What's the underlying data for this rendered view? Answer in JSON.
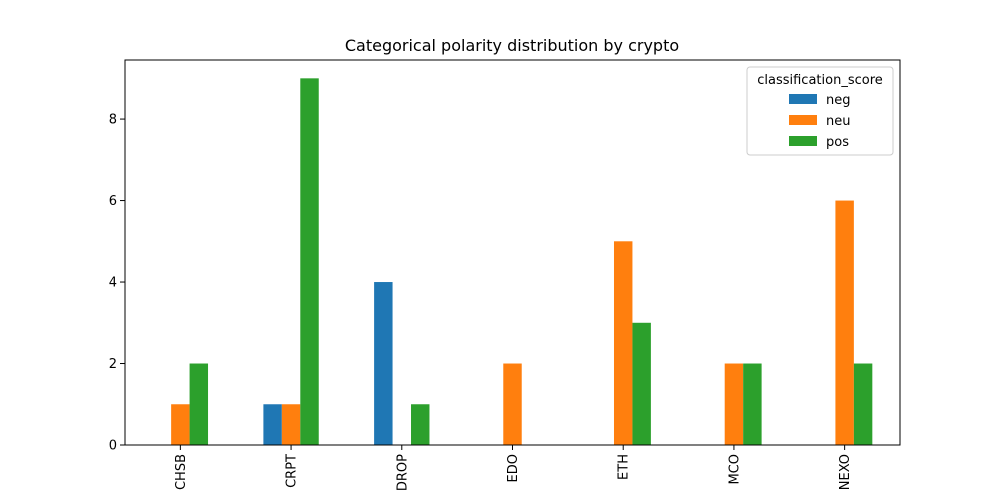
{
  "chart_data": {
    "type": "bar",
    "title": "Categorical polarity distribution by crypto",
    "xlabel": "",
    "ylabel": "",
    "categories": [
      "CHSB",
      "CRPT",
      "DROP",
      "EDO",
      "ETH",
      "MCO",
      "NEXO"
    ],
    "series": [
      {
        "name": "neg",
        "color": "#1f77b4",
        "values": [
          0,
          1,
          4,
          0,
          0,
          0,
          0
        ]
      },
      {
        "name": "neu",
        "color": "#ff7f0e",
        "values": [
          1,
          1,
          0,
          2,
          5,
          2,
          6
        ]
      },
      {
        "name": "pos",
        "color": "#2ca02c",
        "values": [
          2,
          9,
          1,
          0,
          3,
          2,
          2
        ]
      }
    ],
    "ylim": [
      0,
      9.45
    ],
    "yticks": [
      0,
      2,
      4,
      6,
      8
    ],
    "grid": false,
    "legend": {
      "title": "classification_score",
      "placement": "top-right"
    }
  }
}
